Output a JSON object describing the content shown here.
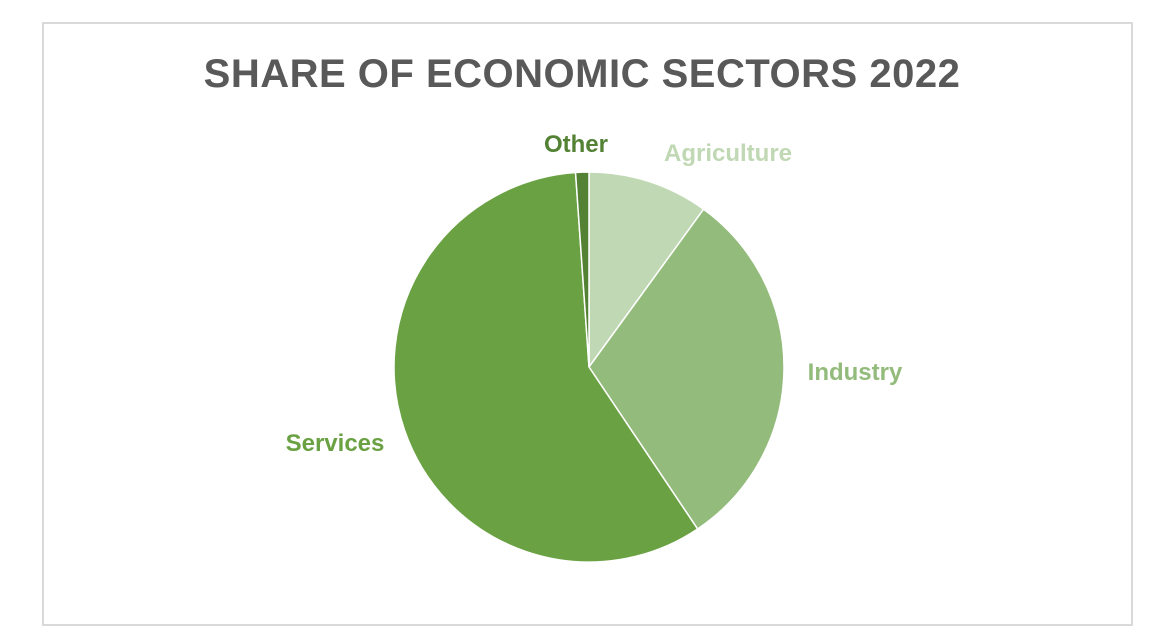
{
  "chart_data": {
    "type": "pie",
    "title": "SHARE OF ECONOMIC SECTORS 2022",
    "categories": [
      "Agriculture",
      "Industry",
      "Services",
      "Other"
    ],
    "values": [
      10,
      30.6,
      58.3,
      1.1
    ],
    "unit": "%",
    "colors": [
      "#c0d8b4",
      "#93bb7b",
      "#6aa243",
      "#548235"
    ],
    "label_colors": [
      "#c0d8b4",
      "#93bb7b",
      "#6aa243",
      "#548235"
    ],
    "legend": "none",
    "start_angle_deg": 0,
    "direction": "clockwise"
  }
}
